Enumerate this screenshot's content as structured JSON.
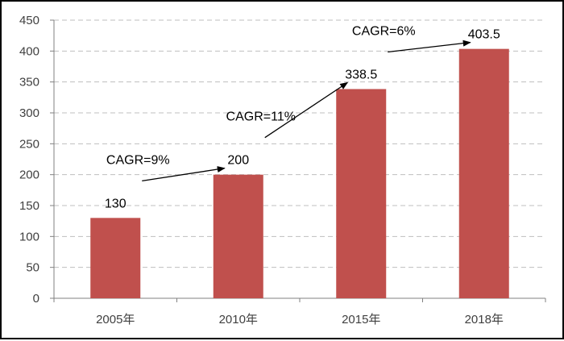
{
  "chart_data": {
    "type": "bar",
    "categories": [
      "2005年",
      "2010年",
      "2015年",
      "2018年"
    ],
    "values": [
      130,
      200,
      338.5,
      403.5
    ],
    "value_labels": [
      "130",
      "200",
      "338.5",
      "403.5"
    ],
    "ylim": [
      0,
      450
    ],
    "yticks": [
      "0",
      "50",
      "100",
      "150",
      "200",
      "250",
      "300",
      "350",
      "400",
      "450"
    ],
    "grid": true,
    "bar_color": "#C0504D",
    "annotations": [
      {
        "text": "CAGR=9%"
      },
      {
        "text": "CAGR=11%"
      },
      {
        "text": "CAGR=6%"
      }
    ]
  }
}
